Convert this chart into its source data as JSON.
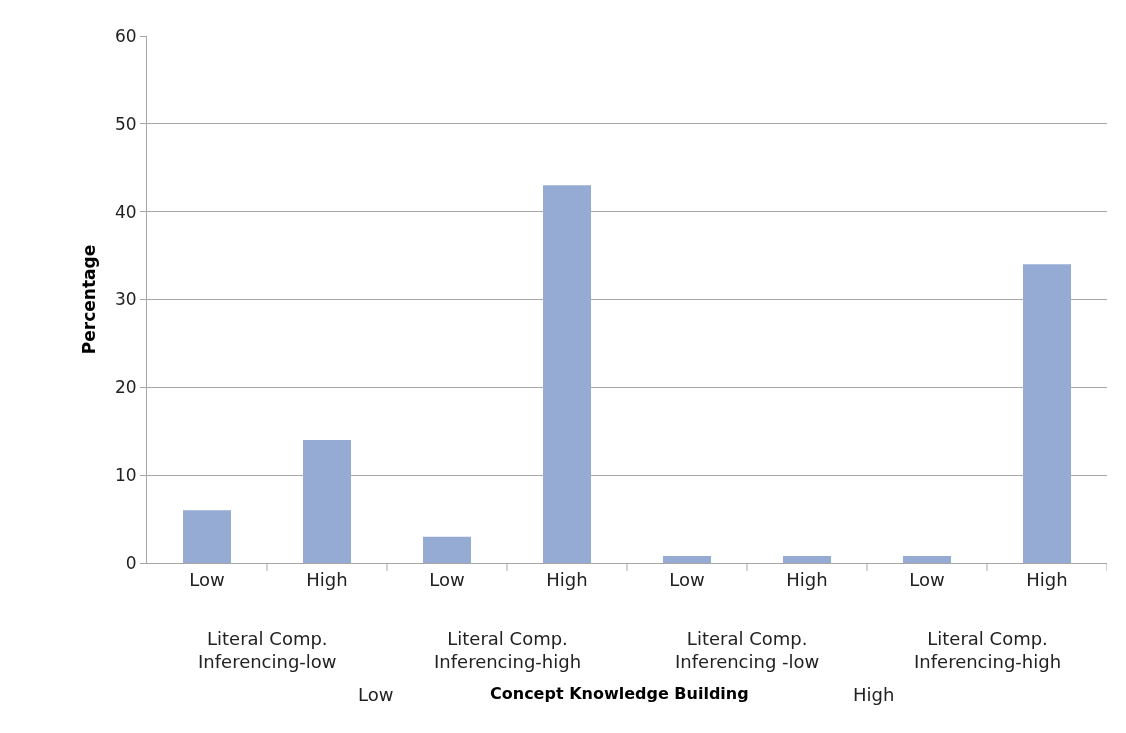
{
  "chart_data": {
    "type": "bar",
    "ylabel": "Percentage",
    "categories": [
      "Low",
      "High",
      "Low",
      "High",
      "Low",
      "High",
      "Low",
      "High"
    ],
    "values": [
      6,
      14,
      3,
      43,
      0.8,
      0.8,
      0.8,
      34
    ],
    "color": "#95abd3",
    "ylim": [
      0,
      60
    ],
    "yticks": [
      0,
      10,
      20,
      30,
      40,
      50,
      60
    ],
    "grid": "y",
    "annotations": [
      "Literal Comp.\nInferencing-low",
      "Literal Comp.\nInferencing-high",
      "Literal Comp.\nInferencing -low",
      "Literal Comp.\nInferencing-high",
      "Low",
      "Concept Knowledge Building",
      "High"
    ]
  }
}
